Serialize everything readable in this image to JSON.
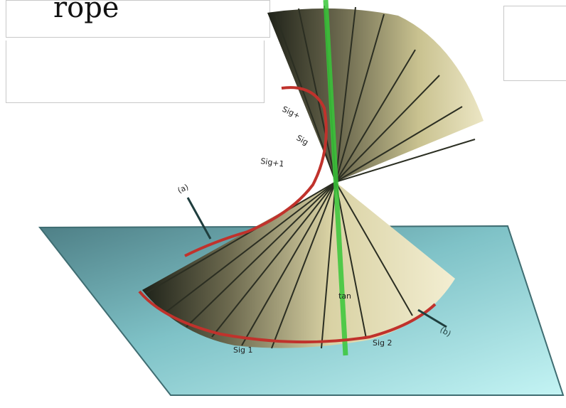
{
  "title": "rope",
  "labels": {
    "helix_top_a": "Sig+",
    "helix_top_b": "Sig",
    "helix_mid": "Sig+1",
    "pointer_upper": "(a)",
    "pointer_right": "(b)",
    "base_left": "Sig 1",
    "base_right": "Sig 2",
    "cone_label": "tan"
  },
  "colors": {
    "plane": "#6fb7bd",
    "plane_light": "#bfeff0",
    "cone_light": "#e9e3b9",
    "cone_dark": "#2f3327",
    "axis": "#39c739",
    "helix": "#c0322c"
  }
}
